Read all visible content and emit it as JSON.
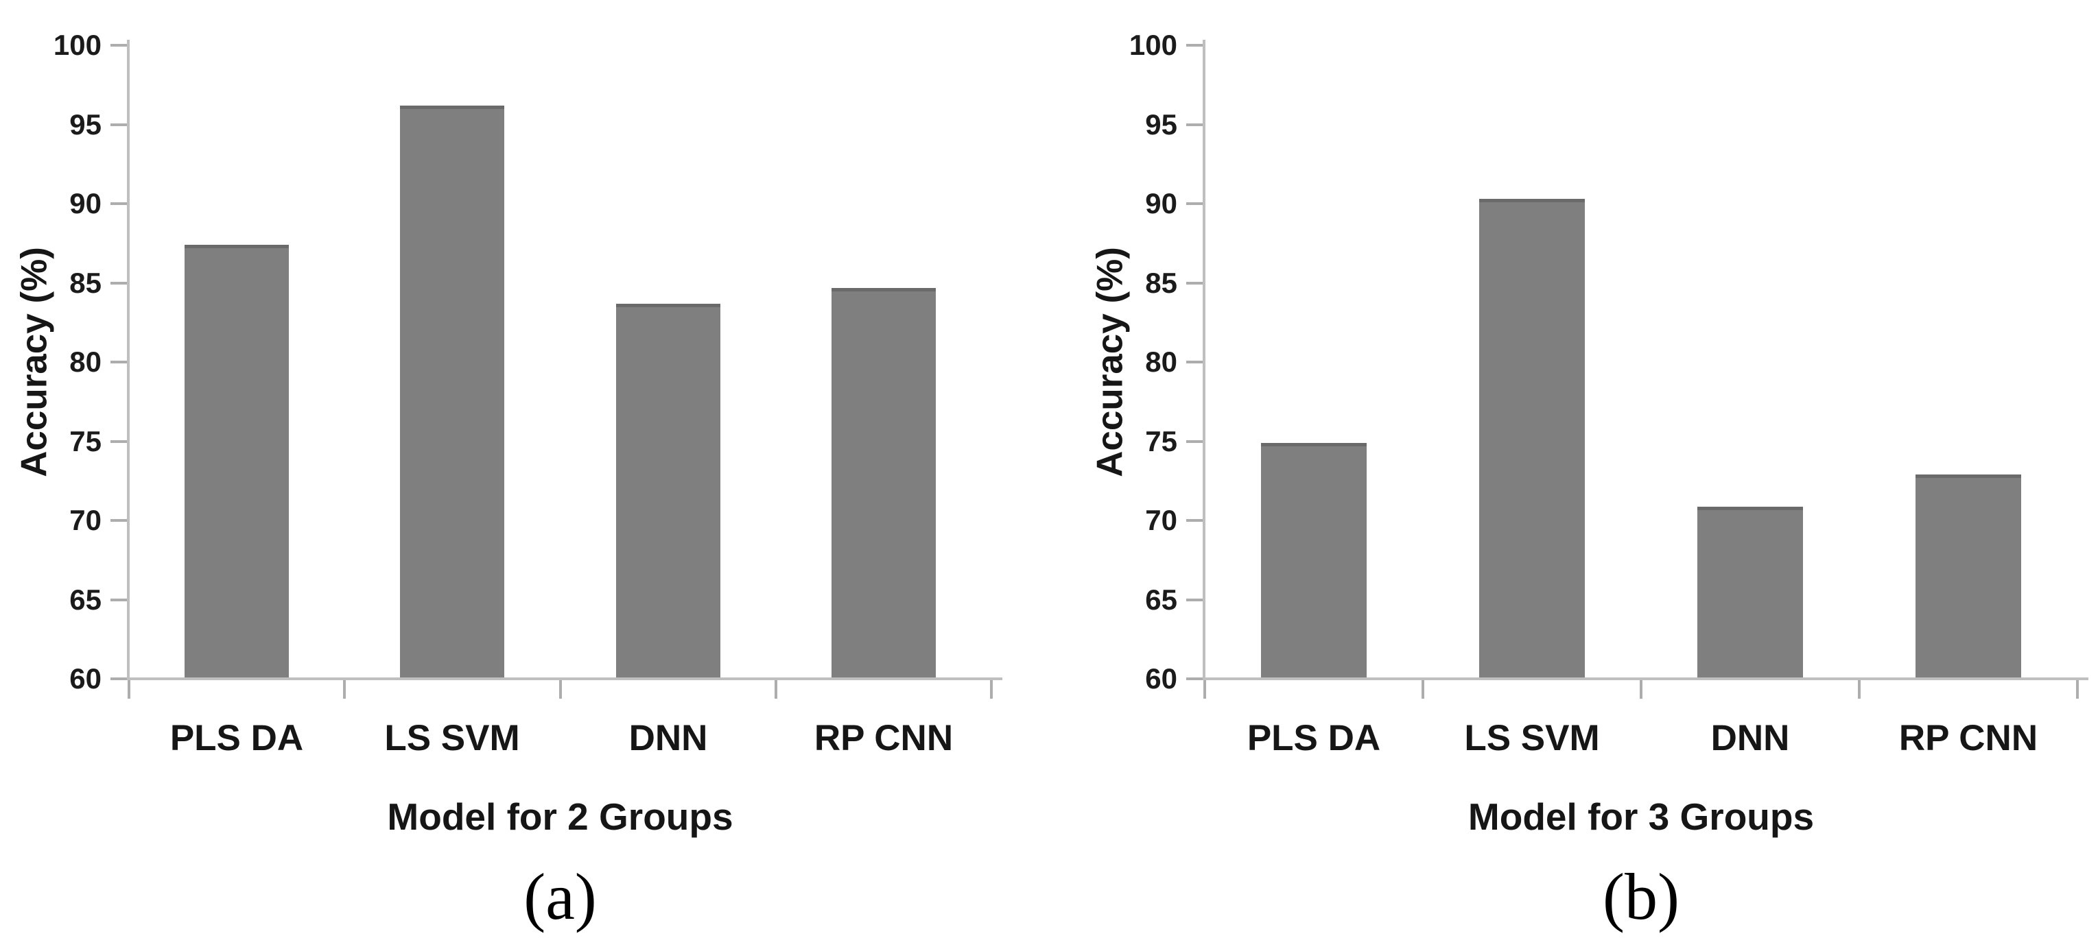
{
  "figure": {
    "background": "#ffffff",
    "bar_color": "#7f7f7f",
    "bar_top_color": "#6a6a6a",
    "axis_color": "#bfbfbf",
    "tick_color": "#adadad",
    "text_color": "#161616"
  },
  "chart_data": [
    {
      "type": "bar",
      "panel_label": "(a)",
      "categories": [
        "PLS DA",
        "LS SVM",
        "DNN",
        "RP CNN"
      ],
      "values": [
        87.3,
        96.1,
        83.6,
        84.6
      ],
      "title": "",
      "xlabel": "Model for 2 Groups",
      "ylabel": "Accuracy (%)",
      "ylim": [
        60,
        100
      ],
      "yticks": [
        60,
        65,
        70,
        75,
        80,
        85,
        90,
        95,
        100
      ],
      "grid": false,
      "legend": null
    },
    {
      "type": "bar",
      "panel_label": "(b)",
      "categories": [
        "PLS DA",
        "LS SVM",
        "DNN",
        "RP CNN"
      ],
      "values": [
        74.8,
        90.2,
        70.8,
        72.8
      ],
      "title": "",
      "xlabel": "Model for 3 Groups",
      "ylabel": "Accuracy (%)",
      "ylim": [
        60,
        100
      ],
      "yticks": [
        60,
        65,
        70,
        75,
        80,
        85,
        90,
        95,
        100
      ],
      "grid": false,
      "legend": null
    }
  ]
}
